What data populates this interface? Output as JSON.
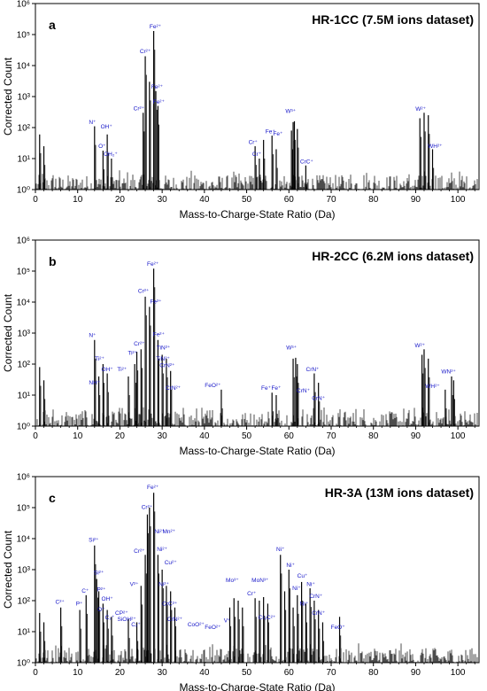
{
  "colors": {
    "spectrum": "#000000",
    "annotation": "#1414c8",
    "axis": "#000000"
  },
  "chart_data": [
    {
      "type": "line",
      "panel_letter": "a",
      "title": "HR-1CC (7.5M ions dataset)",
      "xlabel": "Mass-to-Charge-State Ratio (Da)",
      "ylabel": "Corrected Count",
      "xlim": [
        0,
        105
      ],
      "ylim": [
        1,
        1000000
      ],
      "y_scale": "log",
      "x_ticks": [
        0,
        10,
        20,
        30,
        40,
        50,
        60,
        70,
        80,
        90,
        100
      ],
      "x_tick_labels": [
        "0",
        "10",
        "20",
        "30",
        "40",
        "50",
        "60",
        "70",
        "80",
        "90",
        "100"
      ],
      "y_ticks": [
        1,
        10,
        100,
        1000,
        10000,
        100000,
        1000000
      ],
      "y_tick_labels": [
        "10⁰",
        "10¹",
        "10²",
        "10³",
        "10⁴",
        "10⁵",
        "10⁶"
      ],
      "noise_level": 3,
      "peaks": [
        {
          "x": 1.0,
          "y": 60
        },
        {
          "x": 2.0,
          "y": 25
        },
        {
          "x": 14.0,
          "y": 110
        },
        {
          "x": 16.0,
          "y": 18
        },
        {
          "x": 17.0,
          "y": 60
        },
        {
          "x": 18.0,
          "y": 10
        },
        {
          "x": 25.5,
          "y": 300
        },
        {
          "x": 26.0,
          "y": 20000
        },
        {
          "x": 27.0,
          "y": 3000
        },
        {
          "x": 28.0,
          "y": 130000
        },
        {
          "x": 28.5,
          "y": 1500
        },
        {
          "x": 29.0,
          "y": 500
        },
        {
          "x": 52.0,
          "y": 25
        },
        {
          "x": 53.0,
          "y": 10
        },
        {
          "x": 54.0,
          "y": 40
        },
        {
          "x": 56.0,
          "y": 55
        },
        {
          "x": 57.0,
          "y": 20
        },
        {
          "x": 60.6,
          "y": 80
        },
        {
          "x": 61.0,
          "y": 150
        },
        {
          "x": 61.3,
          "y": 160
        },
        {
          "x": 62.0,
          "y": 90
        },
        {
          "x": 64.0,
          "y": 6
        },
        {
          "x": 91.0,
          "y": 200
        },
        {
          "x": 92.0,
          "y": 300
        },
        {
          "x": 93.0,
          "y": 250
        },
        {
          "x": 94.0,
          "y": 20
        }
      ],
      "labels": [
        {
          "text": "N⁺",
          "x": 13.5,
          "y": 130
        },
        {
          "text": "OH⁺",
          "x": 16.8,
          "y": 95
        },
        {
          "text": "O⁺",
          "x": 15.8,
          "y": 22
        },
        {
          "text": "OH₂⁺",
          "x": 17.8,
          "y": 12
        },
        {
          "text": "Cr²⁺",
          "x": 24.5,
          "y": 360
        },
        {
          "text": "Cr²⁺",
          "x": 26.0,
          "y": 25000
        },
        {
          "text": "Fe²⁺",
          "x": 28.4,
          "y": 160000
        },
        {
          "text": "Fe²⁺",
          "x": 28.8,
          "y": 1800
        },
        {
          "text": "Fe²⁺",
          "x": 29.2,
          "y": 600
        },
        {
          "text": "Cr⁺",
          "x": 51.5,
          "y": 30
        },
        {
          "text": "Cr⁺",
          "x": 52.4,
          "y": 12
        },
        {
          "text": "Fe⁺",
          "x": 55.6,
          "y": 65
        },
        {
          "text": "Fe⁺",
          "x": 57.4,
          "y": 55
        },
        {
          "text": "W³⁺",
          "x": 60.4,
          "y": 300
        },
        {
          "text": "CrC⁺",
          "x": 64.2,
          "y": 7
        },
        {
          "text": "W²⁺",
          "x": 91.2,
          "y": 350
        },
        {
          "text": "WH²⁺",
          "x": 94.6,
          "y": 22
        }
      ]
    },
    {
      "type": "line",
      "panel_letter": "b",
      "title": "HR-2CC (6.2M ions dataset)",
      "xlabel": "Mass-to-Charge-State Ratio (Da)",
      "ylabel": "Corrected Count",
      "xlim": [
        0,
        105
      ],
      "ylim": [
        1,
        1000000
      ],
      "y_scale": "log",
      "x_ticks": [
        0,
        10,
        20,
        30,
        40,
        50,
        60,
        70,
        80,
        90,
        100
      ],
      "x_tick_labels": [
        "0",
        "10",
        "20",
        "30",
        "40",
        "50",
        "60",
        "70",
        "80",
        "90",
        "100"
      ],
      "y_ticks": [
        1,
        10,
        100,
        1000,
        10000,
        100000,
        1000000
      ],
      "y_tick_labels": [
        "10⁰",
        "10¹",
        "10²",
        "10³",
        "10⁴",
        "10⁵",
        "10⁶"
      ],
      "noise_level": 3,
      "peaks": [
        {
          "x": 1.0,
          "y": 80
        },
        {
          "x": 2.0,
          "y": 30
        },
        {
          "x": 14.0,
          "y": 600
        },
        {
          "x": 15.0,
          "y": 40
        },
        {
          "x": 16.0,
          "y": 100
        },
        {
          "x": 17.0,
          "y": 50
        },
        {
          "x": 22.0,
          "y": 40
        },
        {
          "x": 23.5,
          "y": 100
        },
        {
          "x": 24.0,
          "y": 250
        },
        {
          "x": 25.0,
          "y": 300
        },
        {
          "x": 26.0,
          "y": 15000
        },
        {
          "x": 27.0,
          "y": 7000
        },
        {
          "x": 28.0,
          "y": 120000
        },
        {
          "x": 29.0,
          "y": 600
        },
        {
          "x": 30.0,
          "y": 200
        },
        {
          "x": 31.0,
          "y": 150
        },
        {
          "x": 32.0,
          "y": 60
        },
        {
          "x": 44.0,
          "y": 15
        },
        {
          "x": 56.0,
          "y": 12
        },
        {
          "x": 57.0,
          "y": 10
        },
        {
          "x": 61.0,
          "y": 150
        },
        {
          "x": 61.6,
          "y": 160
        },
        {
          "x": 62.0,
          "y": 100
        },
        {
          "x": 66.0,
          "y": 50
        },
        {
          "x": 67.0,
          "y": 25
        },
        {
          "x": 91.5,
          "y": 200
        },
        {
          "x": 92.0,
          "y": 300
        },
        {
          "x": 93.0,
          "y": 150
        },
        {
          "x": 97.0,
          "y": 15
        },
        {
          "x": 98.5,
          "y": 40
        },
        {
          "x": 99.0,
          "y": 30
        }
      ],
      "labels": [
        {
          "text": "Fe²⁺",
          "x": 27.8,
          "y": 150000
        },
        {
          "text": "Cr²⁺",
          "x": 25.6,
          "y": 20000
        },
        {
          "text": "Fe²⁺",
          "x": 28.5,
          "y": 9000
        },
        {
          "text": "N⁺",
          "x": 13.5,
          "y": 750
        },
        {
          "text": "Cr²⁺",
          "x": 24.6,
          "y": 400
        },
        {
          "text": "Fe²⁺",
          "x": 29.2,
          "y": 800
        },
        {
          "text": "TiN²⁺",
          "x": 30.3,
          "y": 300
        },
        {
          "text": "Ti²⁺",
          "x": 15.2,
          "y": 130
        },
        {
          "text": "Ti²⁺",
          "x": 23.0,
          "y": 200
        },
        {
          "text": "Ti²⁺",
          "x": 20.5,
          "y": 60
        },
        {
          "text": "OH⁺",
          "x": 17.0,
          "y": 60
        },
        {
          "text": "NH⁺",
          "x": 14.0,
          "y": 22
        },
        {
          "text": "TiN²⁺",
          "x": 30.2,
          "y": 130
        },
        {
          "text": "CrN²⁺",
          "x": 31.2,
          "y": 80
        },
        {
          "text": "CrN²⁺",
          "x": 32.6,
          "y": 15
        },
        {
          "text": "FeO²⁺",
          "x": 42.0,
          "y": 18
        },
        {
          "text": "Fe⁺",
          "x": 54.6,
          "y": 15
        },
        {
          "text": "Fe⁺",
          "x": 57.0,
          "y": 15
        },
        {
          "text": "W³⁺",
          "x": 60.6,
          "y": 300
        },
        {
          "text": "CrN⁺",
          "x": 65.6,
          "y": 60
        },
        {
          "text": "CrN⁺",
          "x": 63.4,
          "y": 12
        },
        {
          "text": "CrN⁺",
          "x": 67.0,
          "y": 7
        },
        {
          "text": "W²⁺",
          "x": 91.0,
          "y": 350
        },
        {
          "text": "WN²⁺",
          "x": 97.8,
          "y": 50
        },
        {
          "text": "WH²⁺",
          "x": 94.0,
          "y": 17
        }
      ]
    },
    {
      "type": "line",
      "panel_letter": "c",
      "title": "HR-3A (13M ions dataset)",
      "xlabel": "Mass-to-Charge-State Ratio (Da)",
      "ylabel": "Corrected Count",
      "xlim": [
        0,
        105
      ],
      "ylim": [
        1,
        1000000
      ],
      "y_scale": "log",
      "x_ticks": [
        0,
        10,
        20,
        30,
        40,
        50,
        60,
        70,
        80,
        90,
        100
      ],
      "x_tick_labels": [
        "0",
        "10",
        "20",
        "30",
        "40",
        "50",
        "60",
        "70",
        "80",
        "90",
        "100"
      ],
      "y_ticks": [
        1,
        10,
        100,
        1000,
        10000,
        100000,
        1000000
      ],
      "y_tick_labels": [
        "10⁰",
        "10¹",
        "10²",
        "10³",
        "10⁴",
        "10⁵",
        "10⁶"
      ],
      "noise_level": 3,
      "peaks": [
        {
          "x": 1.0,
          "y": 40
        },
        {
          "x": 2.0,
          "y": 20
        },
        {
          "x": 6.0,
          "y": 60
        },
        {
          "x": 10.5,
          "y": 50
        },
        {
          "x": 12.0,
          "y": 150
        },
        {
          "x": 14.0,
          "y": 6000
        },
        {
          "x": 14.5,
          "y": 500
        },
        {
          "x": 15.0,
          "y": 200
        },
        {
          "x": 16.0,
          "y": 80
        },
        {
          "x": 17.0,
          "y": 50
        },
        {
          "x": 18.0,
          "y": 30
        },
        {
          "x": 22.0,
          "y": 25
        },
        {
          "x": 24.0,
          "y": 20
        },
        {
          "x": 25.0,
          "y": 300
        },
        {
          "x": 26.0,
          "y": 3000
        },
        {
          "x": 26.5,
          "y": 60000
        },
        {
          "x": 27.0,
          "y": 100000
        },
        {
          "x": 28.0,
          "y": 300000
        },
        {
          "x": 29.0,
          "y": 3000
        },
        {
          "x": 30.0,
          "y": 1000
        },
        {
          "x": 31.0,
          "y": 300
        },
        {
          "x": 32.0,
          "y": 200
        },
        {
          "x": 33.0,
          "y": 60
        },
        {
          "x": 46.0,
          "y": 60
        },
        {
          "x": 47.0,
          "y": 120
        },
        {
          "x": 48.0,
          "y": 100
        },
        {
          "x": 49.0,
          "y": 60
        },
        {
          "x": 52.0,
          "y": 120
        },
        {
          "x": 53.0,
          "y": 100
        },
        {
          "x": 54.0,
          "y": 130
        },
        {
          "x": 55.0,
          "y": 80
        },
        {
          "x": 58.0,
          "y": 3000
        },
        {
          "x": 59.0,
          "y": 200
        },
        {
          "x": 60.0,
          "y": 1000
        },
        {
          "x": 61.0,
          "y": 60
        },
        {
          "x": 62.0,
          "y": 150
        },
        {
          "x": 63.0,
          "y": 400
        },
        {
          "x": 64.0,
          "y": 80
        },
        {
          "x": 65.0,
          "y": 250
        },
        {
          "x": 66.0,
          "y": 100
        },
        {
          "x": 67.0,
          "y": 50
        },
        {
          "x": 68.0,
          "y": 20
        },
        {
          "x": 72.0,
          "y": 30
        }
      ],
      "labels": [
        {
          "text": "Fe²⁺",
          "x": 27.8,
          "y": 400000
        },
        {
          "text": "Cr²⁺",
          "x": 26.4,
          "y": 90000
        },
        {
          "text": "Ni²⁺",
          "x": 29.4,
          "y": 15000
        },
        {
          "text": "Mn²⁺",
          "x": 31.6,
          "y": 15000
        },
        {
          "text": "Ni²⁺",
          "x": 30.0,
          "y": 4000
        },
        {
          "text": "Si²⁺",
          "x": 13.8,
          "y": 8000
        },
        {
          "text": "Cr²⁺",
          "x": 24.6,
          "y": 3500
        },
        {
          "text": "Cu²⁺",
          "x": 32.0,
          "y": 1500
        },
        {
          "text": "Si²⁺",
          "x": 15.0,
          "y": 700
        },
        {
          "text": "Ni²⁺",
          "x": 30.4,
          "y": 300
        },
        {
          "text": "V²⁺",
          "x": 23.4,
          "y": 300
        },
        {
          "text": "P²⁺",
          "x": 15.6,
          "y": 200
        },
        {
          "text": "OH⁺",
          "x": 17.0,
          "y": 100
        },
        {
          "text": "C⁺",
          "x": 11.8,
          "y": 180
        },
        {
          "text": "C²⁺",
          "x": 5.8,
          "y": 80
        },
        {
          "text": "P⁺",
          "x": 10.4,
          "y": 70
        },
        {
          "text": "O⁺",
          "x": 15.6,
          "y": 45
        },
        {
          "text": "C₂⁺",
          "x": 17.6,
          "y": 25
        },
        {
          "text": "CP²⁺",
          "x": 20.4,
          "y": 35
        },
        {
          "text": "SiOH²⁺",
          "x": 21.6,
          "y": 22
        },
        {
          "text": "C₂⁺",
          "x": 23.8,
          "y": 15
        },
        {
          "text": "CrC²⁺",
          "x": 31.8,
          "y": 70
        },
        {
          "text": "CrN²⁺",
          "x": 33.0,
          "y": 22
        },
        {
          "text": "CoO²⁺",
          "x": 38.0,
          "y": 15
        },
        {
          "text": "FeO²⁺",
          "x": 42.0,
          "y": 12
        },
        {
          "text": "V⁺",
          "x": 45.4,
          "y": 20
        },
        {
          "text": "Mo³⁺",
          "x": 46.6,
          "y": 400
        },
        {
          "text": "Cr⁺",
          "x": 51.2,
          "y": 150
        },
        {
          "text": "MoN³⁺",
          "x": 53.2,
          "y": 400
        },
        {
          "text": "Cr₂C²⁺",
          "x": 54.8,
          "y": 25
        },
        {
          "text": "Ni⁺",
          "x": 58.0,
          "y": 4000
        },
        {
          "text": "Ni⁺",
          "x": 60.4,
          "y": 1200
        },
        {
          "text": "Cu⁺",
          "x": 63.2,
          "y": 550
        },
        {
          "text": "Ni⁺",
          "x": 61.8,
          "y": 220
        },
        {
          "text": "Ni⁺",
          "x": 65.2,
          "y": 300
        },
        {
          "text": "CrN⁺",
          "x": 66.4,
          "y": 120
        },
        {
          "text": "Ni⁺",
          "x": 63.6,
          "y": 70
        },
        {
          "text": "CrN⁺",
          "x": 67.0,
          "y": 35
        },
        {
          "text": "FeO⁺",
          "x": 71.6,
          "y": 12
        }
      ]
    }
  ]
}
